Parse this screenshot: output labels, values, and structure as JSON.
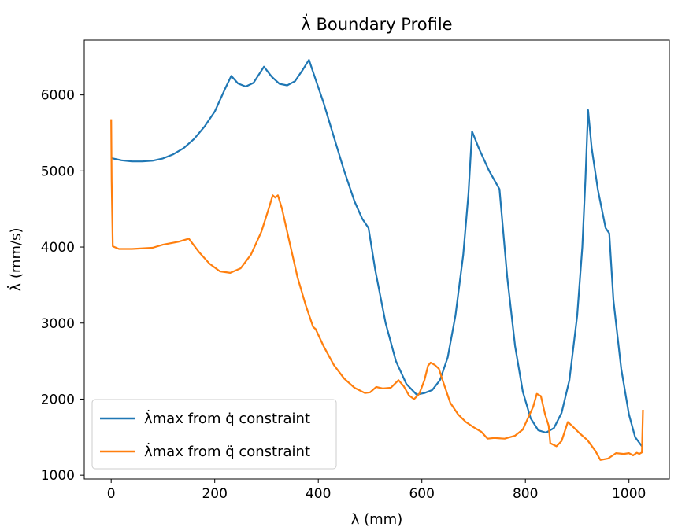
{
  "chart_data": {
    "type": "line",
    "title": "λ̇ Boundary Profile",
    "xlabel": "λ (mm)",
    "ylabel": "λ̇ (mm/s)",
    "xlim": [
      -52,
      1078
    ],
    "ylim": [
      950,
      6720
    ],
    "xticks": [
      0,
      200,
      400,
      600,
      800,
      1000
    ],
    "yticks": [
      1000,
      2000,
      3000,
      4000,
      5000,
      6000
    ],
    "grid": false,
    "legend_position": "lower-left",
    "series": [
      {
        "name": "λ̇max from q̇ constraint",
        "color": "#1f77b4",
        "points": [
          [
            0,
            5170
          ],
          [
            20,
            5140
          ],
          [
            40,
            5125
          ],
          [
            60,
            5125
          ],
          [
            80,
            5135
          ],
          [
            100,
            5165
          ],
          [
            120,
            5220
          ],
          [
            140,
            5300
          ],
          [
            160,
            5420
          ],
          [
            180,
            5580
          ],
          [
            200,
            5780
          ],
          [
            220,
            6080
          ],
          [
            232,
            6250
          ],
          [
            245,
            6150
          ],
          [
            260,
            6110
          ],
          [
            275,
            6160
          ],
          [
            295,
            6370
          ],
          [
            310,
            6240
          ],
          [
            325,
            6145
          ],
          [
            340,
            6125
          ],
          [
            355,
            6180
          ],
          [
            370,
            6330
          ],
          [
            382,
            6460
          ],
          [
            395,
            6200
          ],
          [
            410,
            5900
          ],
          [
            430,
            5450
          ],
          [
            450,
            5000
          ],
          [
            470,
            4600
          ],
          [
            485,
            4370
          ],
          [
            497,
            4250
          ],
          [
            510,
            3700
          ],
          [
            530,
            3000
          ],
          [
            550,
            2500
          ],
          [
            570,
            2200
          ],
          [
            590,
            2060
          ],
          [
            605,
            2080
          ],
          [
            620,
            2120
          ],
          [
            635,
            2250
          ],
          [
            650,
            2550
          ],
          [
            665,
            3100
          ],
          [
            680,
            3900
          ],
          [
            690,
            4700
          ],
          [
            697,
            5520
          ],
          [
            710,
            5300
          ],
          [
            730,
            5000
          ],
          [
            750,
            4760
          ],
          [
            765,
            3600
          ],
          [
            780,
            2700
          ],
          [
            795,
            2100
          ],
          [
            810,
            1750
          ],
          [
            825,
            1590
          ],
          [
            840,
            1560
          ],
          [
            855,
            1620
          ],
          [
            870,
            1820
          ],
          [
            885,
            2250
          ],
          [
            900,
            3100
          ],
          [
            910,
            4000
          ],
          [
            916,
            4900
          ],
          [
            921,
            5800
          ],
          [
            928,
            5300
          ],
          [
            940,
            4750
          ],
          [
            955,
            4250
          ],
          [
            962,
            4180
          ],
          [
            970,
            3300
          ],
          [
            985,
            2400
          ],
          [
            1000,
            1800
          ],
          [
            1012,
            1500
          ],
          [
            1025,
            1380
          ]
        ]
      },
      {
        "name": "λ̇max from q̈ constraint",
        "color": "#ff7f0e",
        "points": [
          [
            0,
            5680
          ],
          [
            1,
            4860
          ],
          [
            3,
            4010
          ],
          [
            15,
            3975
          ],
          [
            40,
            3975
          ],
          [
            80,
            3990
          ],
          [
            100,
            4030
          ],
          [
            130,
            4070
          ],
          [
            150,
            4110
          ],
          [
            170,
            3930
          ],
          [
            190,
            3780
          ],
          [
            210,
            3680
          ],
          [
            230,
            3660
          ],
          [
            250,
            3720
          ],
          [
            270,
            3900
          ],
          [
            290,
            4200
          ],
          [
            305,
            4520
          ],
          [
            312,
            4680
          ],
          [
            317,
            4650
          ],
          [
            322,
            4680
          ],
          [
            330,
            4500
          ],
          [
            345,
            4050
          ],
          [
            360,
            3600
          ],
          [
            375,
            3250
          ],
          [
            390,
            2950
          ],
          [
            395,
            2920
          ],
          [
            410,
            2700
          ],
          [
            430,
            2450
          ],
          [
            450,
            2270
          ],
          [
            470,
            2150
          ],
          [
            490,
            2080
          ],
          [
            500,
            2090
          ],
          [
            512,
            2160
          ],
          [
            525,
            2140
          ],
          [
            540,
            2150
          ],
          [
            555,
            2250
          ],
          [
            565,
            2170
          ],
          [
            575,
            2050
          ],
          [
            585,
            2000
          ],
          [
            595,
            2070
          ],
          [
            605,
            2250
          ],
          [
            612,
            2440
          ],
          [
            617,
            2480
          ],
          [
            625,
            2450
          ],
          [
            633,
            2400
          ],
          [
            640,
            2250
          ],
          [
            655,
            1950
          ],
          [
            670,
            1800
          ],
          [
            685,
            1700
          ],
          [
            700,
            1630
          ],
          [
            715,
            1570
          ],
          [
            727,
            1480
          ],
          [
            740,
            1490
          ],
          [
            760,
            1480
          ],
          [
            780,
            1520
          ],
          [
            795,
            1600
          ],
          [
            805,
            1750
          ],
          [
            815,
            1900
          ],
          [
            822,
            2070
          ],
          [
            830,
            2040
          ],
          [
            838,
            1800
          ],
          [
            845,
            1650
          ],
          [
            848,
            1420
          ],
          [
            860,
            1380
          ],
          [
            870,
            1450
          ],
          [
            882,
            1700
          ],
          [
            890,
            1650
          ],
          [
            905,
            1550
          ],
          [
            920,
            1460
          ],
          [
            935,
            1320
          ],
          [
            945,
            1200
          ],
          [
            960,
            1220
          ],
          [
            975,
            1290
          ],
          [
            990,
            1280
          ],
          [
            1000,
            1290
          ],
          [
            1008,
            1260
          ],
          [
            1015,
            1295
          ],
          [
            1020,
            1280
          ],
          [
            1025,
            1300
          ],
          [
            1027,
            1860
          ]
        ]
      }
    ]
  }
}
